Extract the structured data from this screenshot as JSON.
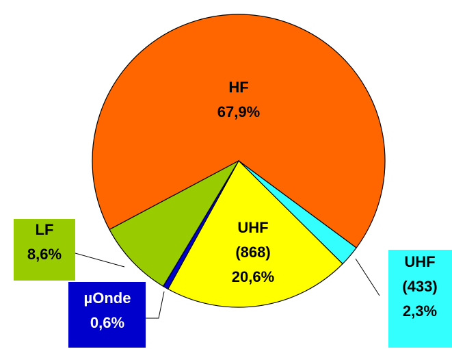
{
  "chart_data": {
    "type": "pie",
    "categories": [
      "HF",
      "UHF (433)",
      "UHF (868)",
      "µOnde",
      "LF"
    ],
    "values": [
      67.9,
      2.3,
      20.6,
      0.6,
      8.6
    ],
    "value_labels": [
      "67,9%",
      "2,3%",
      "20,6%",
      "0,6%",
      "8,6%"
    ],
    "colors": [
      "#ff6600",
      "#33ffff",
      "#ffff00",
      "#0000cc",
      "#99cc00"
    ]
  }
}
